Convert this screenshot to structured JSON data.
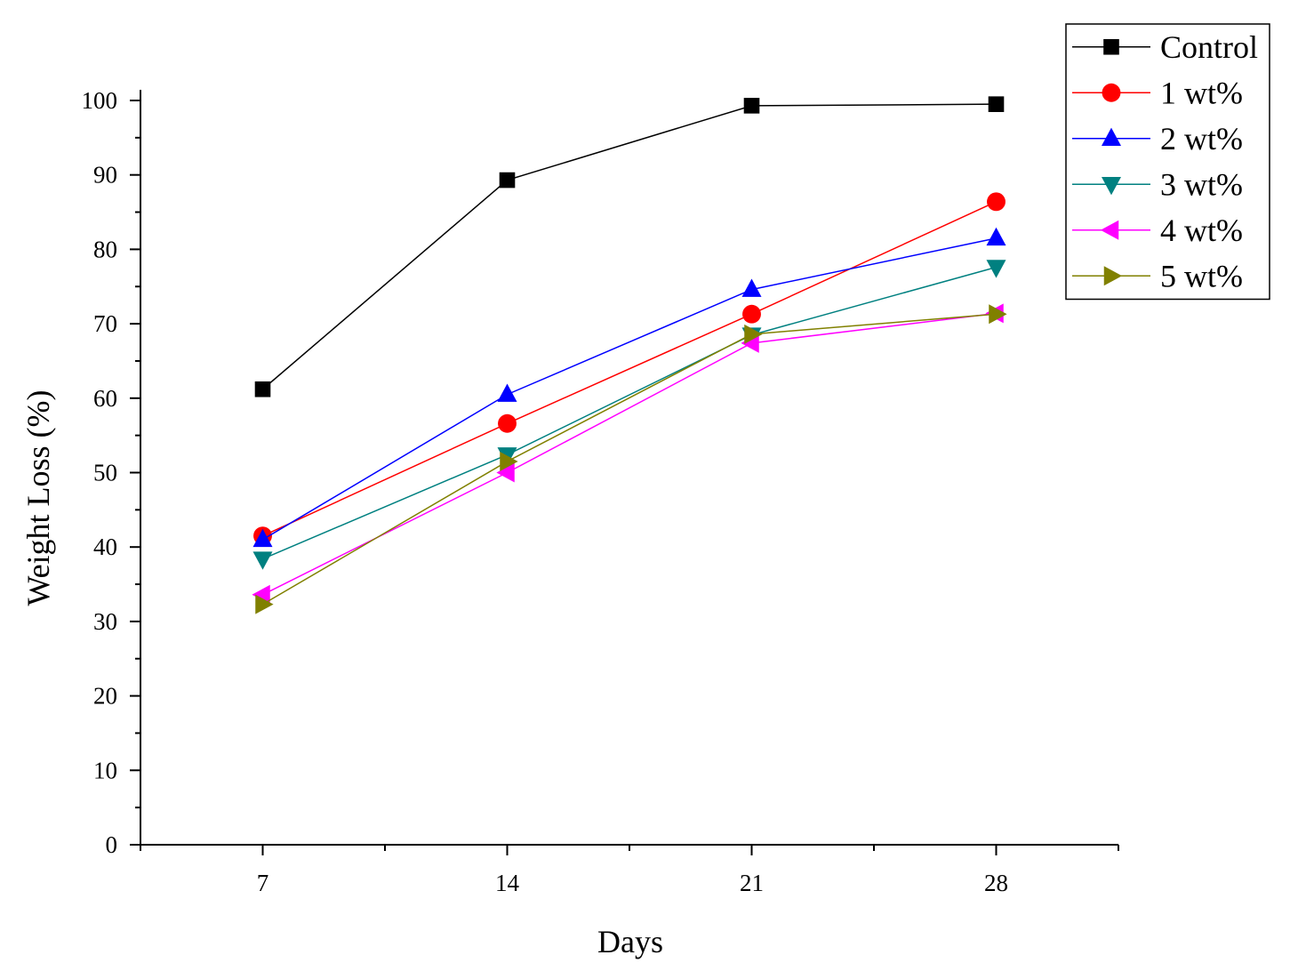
{
  "chart_data": {
    "type": "line",
    "title": "",
    "xlabel": "Days",
    "ylabel": "Weight Loss (%)",
    "x": [
      7,
      14,
      21,
      28
    ],
    "x_tick_labels": [
      "7",
      "14",
      "21",
      "28"
    ],
    "xlim": [
      3.5,
      31.5
    ],
    "ylim": [
      0,
      100
    ],
    "y_ticks": [
      0,
      10,
      20,
      30,
      40,
      50,
      60,
      70,
      80,
      90,
      100
    ],
    "y_tick_labels": [
      "0",
      "10",
      "20",
      "30",
      "40",
      "50",
      "60",
      "70",
      "80",
      "90",
      "100"
    ],
    "grid": false,
    "legend_position": "top-right",
    "series": [
      {
        "name": "Control",
        "color": "#000000",
        "marker": "square",
        "values": [
          61.2,
          89.3,
          99.3,
          99.5
        ]
      },
      {
        "name": "1 wt%",
        "color": "#ff0000",
        "marker": "circle",
        "values": [
          41.5,
          56.6,
          71.3,
          86.4
        ]
      },
      {
        "name": "2 wt%",
        "color": "#0000ff",
        "marker": "triangle-up",
        "values": [
          41.0,
          60.5,
          74.6,
          81.5
        ]
      },
      {
        "name": "3 wt%",
        "color": "#008080",
        "marker": "triangle-down",
        "values": [
          38.4,
          52.4,
          68.5,
          77.6
        ]
      },
      {
        "name": "4 wt%",
        "color": "#ff00ff",
        "marker": "triangle-left",
        "values": [
          33.6,
          50.0,
          67.4,
          71.4
        ]
      },
      {
        "name": "5 wt%",
        "color": "#808000",
        "marker": "triangle-right",
        "values": [
          32.3,
          51.5,
          68.6,
          71.3
        ]
      }
    ]
  }
}
